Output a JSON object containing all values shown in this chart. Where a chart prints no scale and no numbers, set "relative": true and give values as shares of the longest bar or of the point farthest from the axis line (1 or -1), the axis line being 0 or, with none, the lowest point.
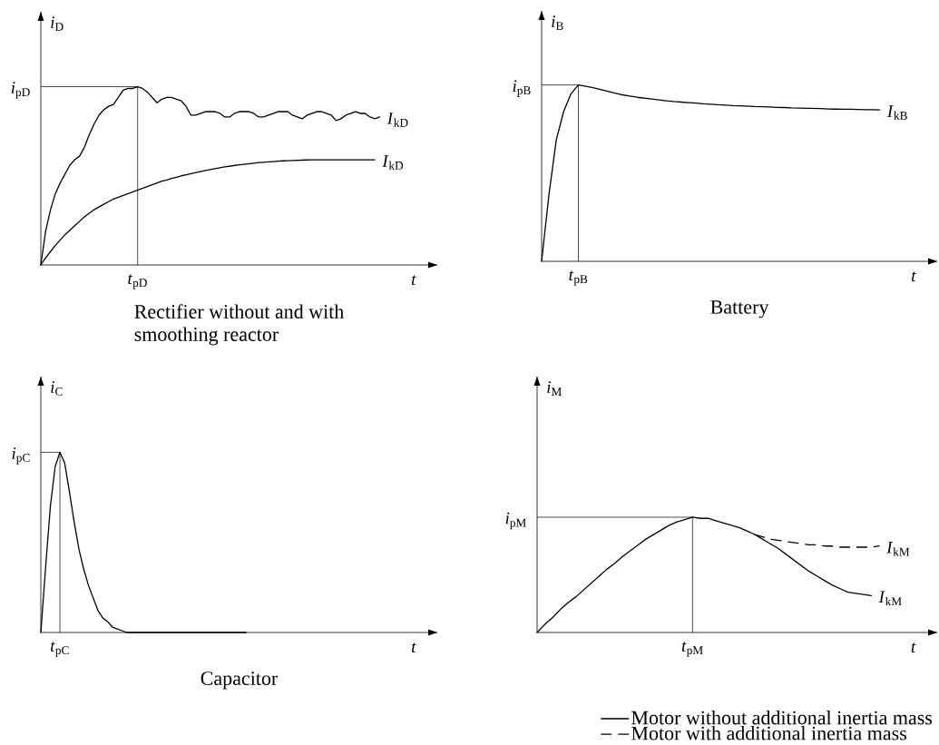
{
  "chart_data": [
    {
      "type": "line",
      "relative": true,
      "title": "Rectifier without and with smoothing reactor",
      "xlabel": "t",
      "ylabel": "*i*$_{D}$",
      "categories": [
        null,
        null,
        null,
        null,
        null,
        null,
        null,
        null,
        null,
        null,
        null,
        null,
        null,
        null,
        null,
        null,
        null,
        null,
        null,
        null,
        null,
        null,
        null,
        null,
        null,
        null,
        null,
        null,
        null,
        null,
        null,
        null,
        null,
        null,
        null,
        null,
        null,
        null,
        null,
        null,
        null,
        null,
        null,
        null,
        null,
        null,
        null,
        null,
        null,
        null,
        null,
        null,
        null,
        null,
        null,
        null,
        null,
        null,
        null,
        null,
        null,
        null,
        null,
        null,
        null,
        null,
        null,
        null,
        null,
        null,
        null
      ],
      "series": [
        {
          "name": "*I*$_{kD}$",
          "color": "#000000",
          "values": [
            0,
            0.19,
            0.31,
            0.4,
            0.46,
            0.51,
            0.56,
            0.59,
            0.61,
            0.66,
            0.73,
            0.79,
            0.84,
            0.87,
            0.89,
            0.9,
            0.94,
            0.98,
            0.99,
            0.99,
            1,
            0.99,
            0.97,
            0.94,
            0.91,
            0.93,
            0.94,
            0.94,
            0.93,
            0.92,
            0.89,
            0.84,
            0.84,
            0.85,
            0.86,
            0.86,
            0.86,
            0.85,
            0.83,
            0.83,
            0.85,
            0.86,
            0.86,
            0.86,
            0.85,
            0.83,
            0.83,
            0.84,
            0.85,
            0.86,
            0.86,
            0.86,
            0.84,
            0.83,
            0.82,
            0.84,
            0.85,
            0.86,
            0.86,
            0.85,
            0.84,
            0.81,
            0.82,
            0.84,
            0.85,
            0.86,
            0.85,
            0.85,
            0.83,
            0.82,
            0.83
          ]
        },
        {
          "name": "*I*$_{kD}$",
          "color": "#000000",
          "values": [
            0,
            0.04,
            0.075,
            0.11,
            0.14,
            0.17,
            0.195,
            0.22,
            0.245,
            0.27,
            0.29,
            0.31,
            0.325,
            0.34,
            0.355,
            0.37,
            0.38,
            0.39,
            0.4,
            0.41,
            0.42,
            0.43,
            0.44,
            0.45,
            0.46,
            0.47,
            0.477,
            0.485,
            0.492,
            0.5,
            0.506,
            0.512,
            0.518,
            0.524,
            0.53,
            0.535,
            0.54,
            0.545,
            0.55,
            0.554,
            0.558,
            0.562,
            0.565,
            0.568,
            0.571,
            0.574,
            0.576,
            0.578,
            0.58,
            0.582,
            0.584,
            0.585,
            0.586,
            0.587,
            0.588,
            0.589,
            0.59,
            0.59,
            0.59,
            0.59,
            0.59,
            0.59,
            0.59,
            0.59,
            0.59,
            0.59,
            0.59,
            0.59,
            0.59,
            0.59,
            null
          ]
        }
      ],
      "ref_lines": [
        {
          "axis": "x",
          "label": "*t*$_{pD}$"
        },
        {
          "axis": "y",
          "value": 1,
          "label": "*i*$_{pD}$"
        }
      ]
    },
    {
      "type": "line",
      "relative": true,
      "title": "Battery",
      "xlabel": "t",
      "ylabel": "*i*$_{B}$",
      "categories": [
        null,
        null,
        null,
        null,
        null,
        null,
        null,
        null,
        null,
        null,
        null,
        null,
        null,
        null,
        null,
        null,
        null,
        null,
        null,
        null,
        null,
        null,
        null,
        null,
        null,
        null,
        null,
        null,
        null,
        null,
        null,
        null,
        null,
        null,
        null,
        null,
        null,
        null,
        null,
        null,
        null,
        null,
        null,
        null,
        null,
        null,
        null
      ],
      "series": [
        {
          "name": "*I*$_{kB}$",
          "color": "#000000",
          "values": [
            0,
            0.38,
            0.69,
            0.85,
            0.95,
            1,
            0.992,
            0.984,
            0.974,
            0.964,
            0.954,
            0.944,
            0.937,
            0.93,
            0.925,
            0.92,
            0.915,
            0.91,
            0.906,
            0.903,
            0.9,
            0.897,
            0.893,
            0.891,
            0.888,
            0.886,
            0.883,
            0.882,
            0.88,
            0.878,
            0.877,
            0.875,
            0.873,
            0.872,
            0.87,
            0.869,
            0.868,
            0.867,
            0.866,
            0.864,
            0.863,
            0.862,
            0.862,
            0.861,
            0.86,
            0.86,
            0.859
          ]
        }
      ],
      "ref_lines": [
        {
          "axis": "x",
          "label": "*t*$_{pB}$"
        },
        {
          "axis": "y",
          "value": 1,
          "label": "*i*$_{pB}$"
        }
      ]
    },
    {
      "type": "line",
      "relative": true,
      "title": "Capacitor",
      "xlabel": "t",
      "ylabel": "*i*$_{C}$",
      "categories": [
        null,
        null,
        null,
        null,
        null,
        null,
        null,
        null,
        null,
        null,
        null,
        null,
        null,
        null,
        null,
        null,
        null,
        null,
        null,
        null,
        null,
        null,
        null,
        null,
        null,
        null,
        null,
        null,
        null,
        null,
        null,
        null,
        null,
        null,
        null,
        null,
        null,
        null,
        null,
        null,
        null,
        null,
        null,
        null,
        null,
        null,
        null,
        null,
        null,
        null,
        null,
        null,
        null,
        null,
        null,
        null,
        null,
        null,
        null,
        null,
        null,
        null,
        null,
        null,
        null,
        null,
        null,
        null,
        null,
        null,
        null,
        null
      ],
      "series": [
        {
          "color": "#000000",
          "values": [
            0,
            0.36,
            0.7,
            0.92,
            1,
            0.94,
            0.78,
            0.61,
            0.46,
            0.35,
            0.26,
            0.19,
            0.12,
            0.08,
            0.06,
            0.03,
            0.02,
            0.01,
            0,
            0,
            0,
            0,
            0,
            0,
            0,
            0,
            0,
            0,
            0,
            0,
            0,
            0,
            0,
            0,
            0,
            0,
            0,
            0,
            0,
            0,
            0,
            0,
            0,
            0,
            null,
            null,
            null,
            null,
            null,
            null,
            null,
            null,
            null,
            null,
            null,
            null,
            null,
            null,
            null,
            null,
            null,
            null,
            null,
            null,
            null,
            null,
            null,
            null,
            null,
            null,
            null,
            null
          ]
        }
      ],
      "ref_lines": [
        {
          "axis": "x",
          "label": "*t*$_{pC}$"
        },
        {
          "axis": "y",
          "value": 1,
          "label": "*i*$_{pC}$"
        }
      ]
    },
    {
      "type": "line",
      "relative": true,
      "xlabel": "t",
      "ylabel": "*i*$_{M}$",
      "legend": "bottom right",
      "categories": [
        null,
        null,
        null,
        null,
        null,
        null,
        null,
        null,
        null,
        null,
        null,
        null,
        null,
        null,
        null,
        null,
        null,
        null,
        null,
        null,
        null,
        null,
        null,
        null,
        null,
        null,
        null,
        null,
        null,
        null,
        null,
        null,
        null,
        null,
        null,
        null,
        null,
        null,
        null,
        null,
        null,
        null,
        null,
        null,
        null
      ],
      "series": [
        {
          "name": "Motor without additional inertia mass",
          "color": "#000000",
          "line_style": "solid",
          "values": [
            0,
            0.07,
            0.13,
            0.2,
            0.26,
            0.31,
            0.37,
            0.43,
            0.49,
            0.55,
            0.6,
            0.66,
            0.71,
            0.76,
            0.81,
            0.85,
            0.89,
            0.93,
            0.96,
            0.98,
            1,
            0.99,
            0.99,
            0.97,
            0.95,
            0.93,
            0.91,
            0.88,
            0.85,
            0.81,
            0.77,
            0.73,
            0.68,
            0.63,
            0.58,
            0.53,
            0.49,
            0.45,
            0.41,
            0.38,
            0.35,
            0.34,
            0.33,
            0.32,
            null
          ]
        },
        {
          "name": "Motor with additional inertia mass",
          "color": "#000000",
          "line_style": "dashed",
          "values": [
            null,
            null,
            null,
            null,
            null,
            null,
            null,
            null,
            null,
            null,
            null,
            null,
            null,
            null,
            null,
            null,
            null,
            null,
            null,
            null,
            null,
            null,
            null,
            null,
            null,
            null,
            null,
            null,
            0.85,
            0.83,
            0.81,
            0.8,
            0.79,
            0.78,
            0.77,
            0.76,
            0.76,
            0.75,
            0.75,
            0.74,
            0.74,
            0.74,
            0.74,
            0.74,
            0.75
          ]
        }
      ],
      "ref_lines": [
        {
          "axis": "x",
          "label": "*t*$_{pM}$"
        },
        {
          "axis": "y",
          "value": 1,
          "label": "*i*$_{pM}$"
        }
      ],
      "annotations": [
        "*I*$_{kM}$",
        "*I*$_{kM}$"
      ]
    }
  ]
}
